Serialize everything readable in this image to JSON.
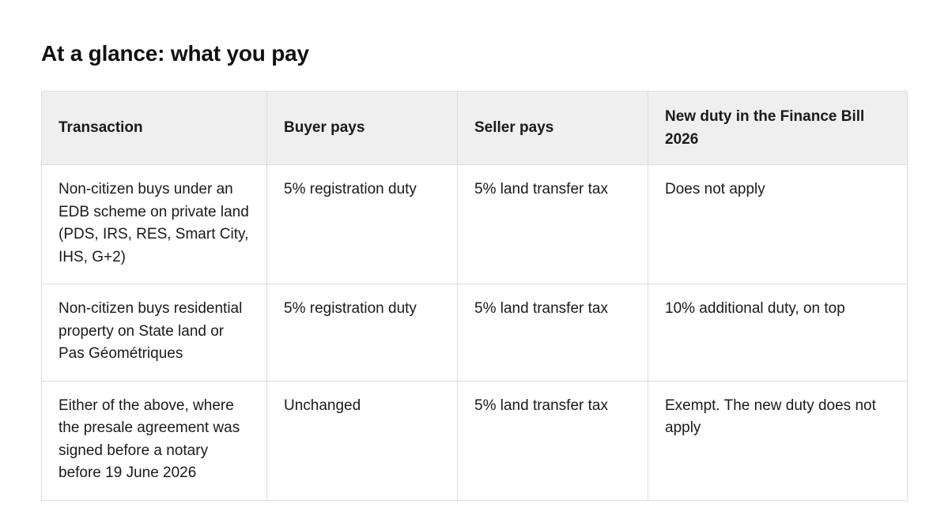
{
  "title": "At a glance: what you pay",
  "table": {
    "headers": [
      "Transaction",
      "Buyer pays",
      "Seller pays",
      "New duty in the Finance Bill 2026"
    ],
    "rows": [
      [
        "Non-citizen buys under an EDB scheme on private land (PDS, IRS, RES, Smart City, IHS, G+2)",
        "5% registration duty",
        "5% land transfer tax",
        "Does not apply"
      ],
      [
        "Non-citizen buys residential property on State land or Pas Géométriques",
        "5% registration duty",
        "5% land transfer tax",
        "10% additional duty, on top"
      ],
      [
        "Either of the above, where the presale agreement was signed before a notary before 19 June 2026",
        "Unchanged",
        "5% land transfer tax",
        "Exempt. The new duty does not apply"
      ]
    ]
  }
}
